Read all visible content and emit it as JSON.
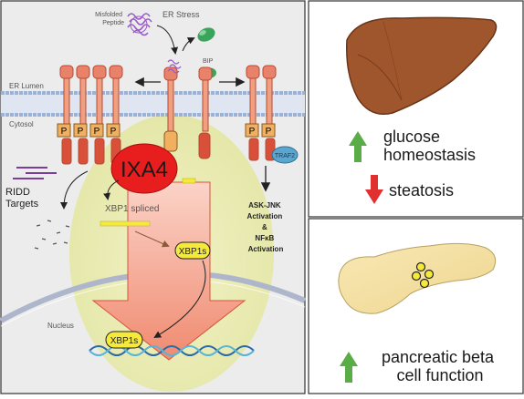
{
  "er_panel": {
    "misfolded_peptide": "Misfolded\nPeptide",
    "er_stress": "ER Stress",
    "bip": "BIP",
    "er_lumen": "ER Lumen",
    "cytosol": "Cytosol",
    "p_label": "P",
    "traf2": "TRAF2",
    "ixa4": "IXA4",
    "ridd_targets": "RIDD\nTargets",
    "xbp1_spliced": "XBP1 spliced",
    "xbp1s": "XBP1s",
    "nucleus": "Nucleus",
    "ask_jnk": [
      "ASK-JNK",
      "Activation",
      "&",
      "NFκB",
      "Activation"
    ]
  },
  "liver_panel": {
    "glucose": [
      "glucose",
      "homeostasis"
    ],
    "steatosis": "steatosis"
  },
  "pancreas_panel": {
    "beta": [
      "pancreatic beta",
      "cell function"
    ]
  },
  "colors": {
    "up_arrow": "#5aac46",
    "down_arrow": "#e03030",
    "ixa4_red": "#e81d1d",
    "receptor": "#e8826a",
    "liver": "#a0562c",
    "pancreas": "#f3dfa0",
    "xbp1_yellow": "#f5ea3a"
  }
}
